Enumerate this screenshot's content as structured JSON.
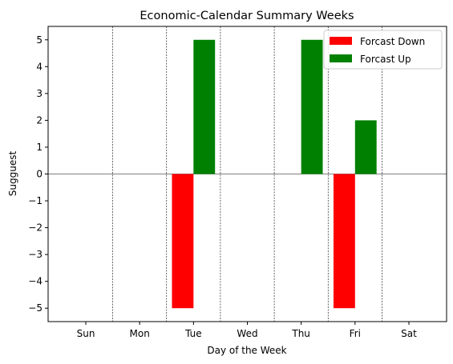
{
  "chart_data": {
    "type": "bar",
    "title": "Economic-Calendar Summary Weeks",
    "xlabel": "Day of the Week",
    "ylabel": "Sugguest",
    "categories": [
      "Sun",
      "Mon",
      "Tue",
      "Wed",
      "Thu",
      "Fri",
      "Sat"
    ],
    "series": [
      {
        "name": "Forcast Down",
        "color": "#ff0000",
        "values": [
          0,
          0,
          -5,
          0,
          0,
          -5,
          0
        ]
      },
      {
        "name": "Forcast Up",
        "color": "#008000",
        "values": [
          0,
          0,
          5,
          0,
          5,
          2,
          0
        ]
      }
    ],
    "yticks": [
      "−5",
      "−4",
      "−3",
      "−2",
      "−1",
      "0",
      "1",
      "2",
      "3",
      "4",
      "5"
    ],
    "ylim": [
      -5.5,
      5.5
    ],
    "xlim": [
      -0.7,
      6.7
    ],
    "grid": "vertical dashed separators between days",
    "zero_line": true,
    "legend": "top-right"
  }
}
